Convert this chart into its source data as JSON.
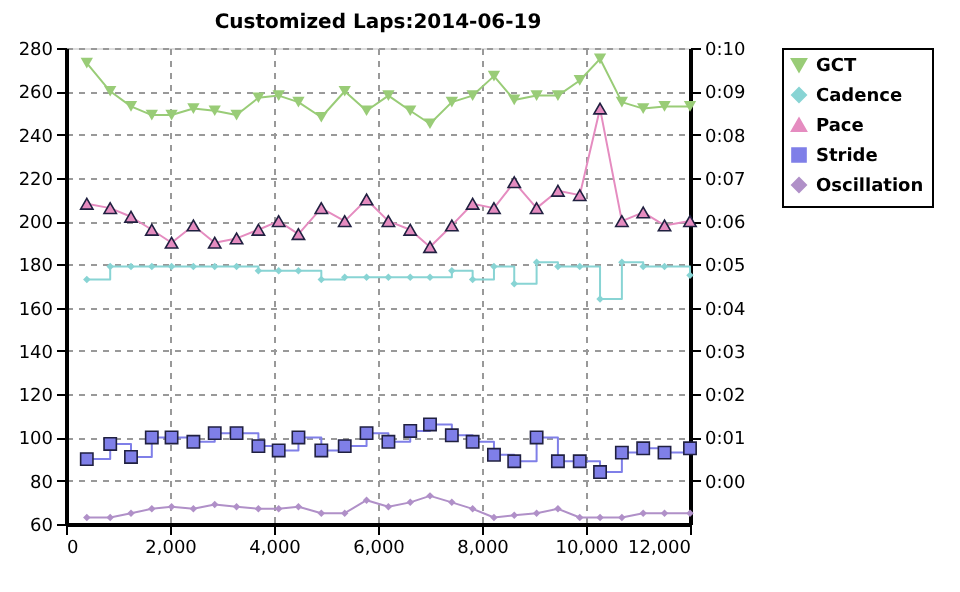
{
  "chart_data": {
    "type": "line",
    "title": "Customized Laps:2014-06-19",
    "x": [
      400,
      850,
      1250,
      1650,
      2030,
      2450,
      2860,
      3280,
      3700,
      4090,
      4470,
      4910,
      5360,
      5780,
      6200,
      6620,
      7000,
      7420,
      7820,
      8230,
      8620,
      9050,
      9460,
      9880,
      10270,
      10690,
      11100,
      11510,
      12000
    ],
    "series": [
      {
        "name": "GCT",
        "color": "#99cc77",
        "marker": "triangle-down",
        "values": [
          273,
          260,
          253,
          249,
          249,
          252,
          251,
          249,
          257,
          258,
          255,
          248,
          260,
          251,
          258,
          251,
          245,
          255,
          258,
          267,
          256,
          258,
          258,
          265,
          275,
          255,
          252,
          253,
          253
        ]
      },
      {
        "name": "Cadence",
        "color": "#88d4d4",
        "type": "step",
        "marker": "diamond",
        "values": [
          173,
          179,
          179,
          179,
          179,
          179,
          179,
          179,
          177,
          177,
          177,
          173,
          174,
          174,
          174,
          174,
          174,
          177,
          173,
          179,
          171,
          181,
          179,
          179,
          164,
          181,
          179,
          179,
          175
        ]
      },
      {
        "name": "Pace",
        "color": "#e58cc0",
        "marker": "triangle",
        "axis": "y2",
        "values": [
          6.4,
          6.3,
          6.1,
          5.8,
          5.5,
          5.9,
          5.5,
          5.6,
          5.8,
          6.0,
          5.7,
          6.3,
          6.0,
          6.5,
          6.0,
          5.8,
          5.4,
          5.9,
          6.4,
          6.3,
          6.9,
          6.3,
          6.7,
          6.6,
          8.6,
          6.0,
          6.2,
          5.9,
          6.0
        ]
      },
      {
        "name": "Stride",
        "color": "#7f7fe8",
        "type": "step",
        "marker": "square",
        "values": [
          90,
          97,
          91,
          100,
          100,
          98,
          102,
          102,
          96,
          94,
          100,
          94,
          96,
          102,
          98,
          103,
          106,
          101,
          98,
          92,
          89,
          100,
          89,
          89,
          84,
          93,
          95,
          93,
          95
        ]
      },
      {
        "name": "Oscillation",
        "color": "#b090c8",
        "marker": "diamond",
        "values": [
          63,
          63,
          65,
          67,
          68,
          67,
          69,
          68,
          67,
          67,
          68,
          65,
          65,
          71,
          68,
          70,
          73,
          70,
          67,
          63,
          64,
          65,
          67,
          63,
          63,
          63,
          65,
          65,
          65
        ]
      }
    ],
    "xlim": [
      0,
      12000
    ],
    "xticks": [
      0,
      {
        "value": 2000,
        "label": "2,000"
      },
      {
        "value": 4000,
        "label": "4,000"
      },
      {
        "value": 6000,
        "label": "6,000"
      },
      {
        "value": 8000,
        "label": "8,000"
      },
      {
        "value": 10000,
        "label": "10,000"
      },
      {
        "value": 12000,
        "label": "12,000"
      }
    ],
    "ylim": [
      60,
      280
    ],
    "yticks": [
      60,
      80,
      100,
      120,
      140,
      160,
      180,
      200,
      220,
      240,
      260,
      280
    ],
    "y2lim": [
      -1,
      10
    ],
    "y2ticks": [
      {
        "value": 0,
        "label": "0:00"
      },
      {
        "value": 1,
        "label": "0:01"
      },
      {
        "value": 2,
        "label": "0:02"
      },
      {
        "value": 3,
        "label": "0:03"
      },
      {
        "value": 4,
        "label": "0:04"
      },
      {
        "value": 5,
        "label": "0:05"
      },
      {
        "value": 6,
        "label": "0:06"
      },
      {
        "value": 7,
        "label": "0:07"
      },
      {
        "value": 8,
        "label": "0:08"
      },
      {
        "value": 9,
        "label": "0:09"
      },
      {
        "value": 10,
        "label": "0:10"
      }
    ],
    "grid": true,
    "legend": "top right",
    "line_style": "solid"
  }
}
